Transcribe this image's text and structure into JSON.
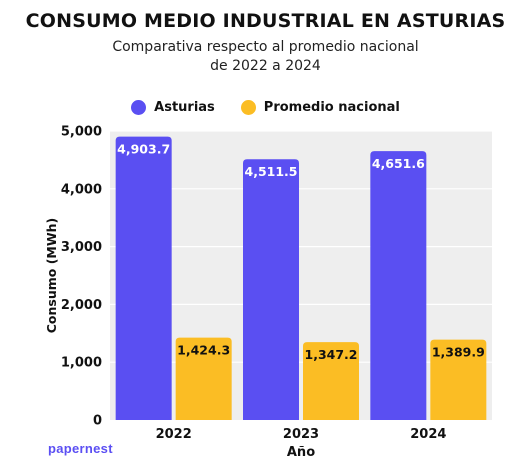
{
  "chart_data": {
    "type": "bar",
    "title": "CONSUMO MEDIO INDUSTRIAL EN ASTURIAS",
    "subtitle_line1": "Comparativa respecto al promedio nacional",
    "subtitle_line2": "de 2022 a 2024",
    "xlabel": "Año",
    "ylabel": "Consumo (MWh)",
    "categories": [
      "2022",
      "2023",
      "2024"
    ],
    "series": [
      {
        "name": "Asturias",
        "color": "#5a4ff2",
        "values": [
          4903.7,
          4511.5,
          4651.6
        ],
        "labels": [
          "4,903.7",
          "4,511.5",
          "4,651.6"
        ]
      },
      {
        "name": "Promedio nacional",
        "color": "#fbbd24",
        "values": [
          1424.3,
          1347.2,
          1389.9
        ],
        "labels": [
          "1,424.3",
          "1,347.2",
          "1,389.9"
        ]
      }
    ],
    "ylim": [
      0,
      5000
    ],
    "yticks": [
      0,
      1000,
      2000,
      3000,
      4000,
      5000
    ],
    "ytick_labels": [
      "0",
      "1,000",
      "2,000",
      "3,000",
      "4,000",
      "5,000"
    ],
    "grid": true,
    "legend_position": "top-center"
  },
  "brand": {
    "logo_text": "papernest"
  }
}
